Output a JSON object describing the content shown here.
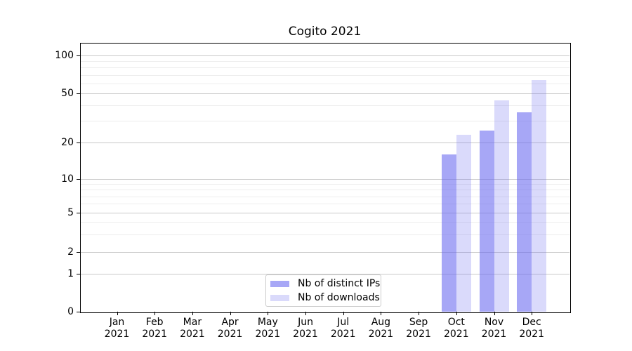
{
  "chart_data": {
    "type": "bar",
    "title": "Cogito 2021",
    "year": "2021",
    "categories": [
      "Jan",
      "Feb",
      "Mar",
      "Apr",
      "May",
      "Jun",
      "Jul",
      "Aug",
      "Sep",
      "Oct",
      "Nov",
      "Dec"
    ],
    "series": [
      {
        "name": "Nb of distinct IPs",
        "color": "#6464f0",
        "alpha": 0.57,
        "composited_color": "#a6a6f7",
        "values": [
          0,
          0,
          0,
          0,
          0,
          0,
          0,
          0,
          0,
          16,
          25,
          35
        ]
      },
      {
        "name": "Nb of downloads",
        "color": "#6464f0",
        "alpha": 0.24,
        "composited_color": "#dadaf8",
        "values": [
          0,
          0,
          0,
          0,
          0,
          0,
          0,
          0,
          0,
          23,
          44,
          64
        ]
      }
    ],
    "yscale": "symlog",
    "yticks": [
      0,
      1,
      2,
      5,
      10,
      20,
      50,
      100
    ],
    "ytick_labels": [
      "0",
      "1",
      "2",
      "5",
      "10",
      "20",
      "50",
      "100"
    ],
    "minor_yticks": [
      3,
      4,
      6,
      7,
      8,
      9,
      30,
      40,
      60,
      70,
      80,
      90
    ],
    "ylim": [
      0,
      130
    ],
    "grid": "horizontal major and minor",
    "legend_position": "lower center, inside plot",
    "colors": {
      "major_gridline": "#c9c9c9",
      "minor_gridline": "#ededed",
      "spine": "#000000",
      "background": "#ffffff"
    }
  }
}
